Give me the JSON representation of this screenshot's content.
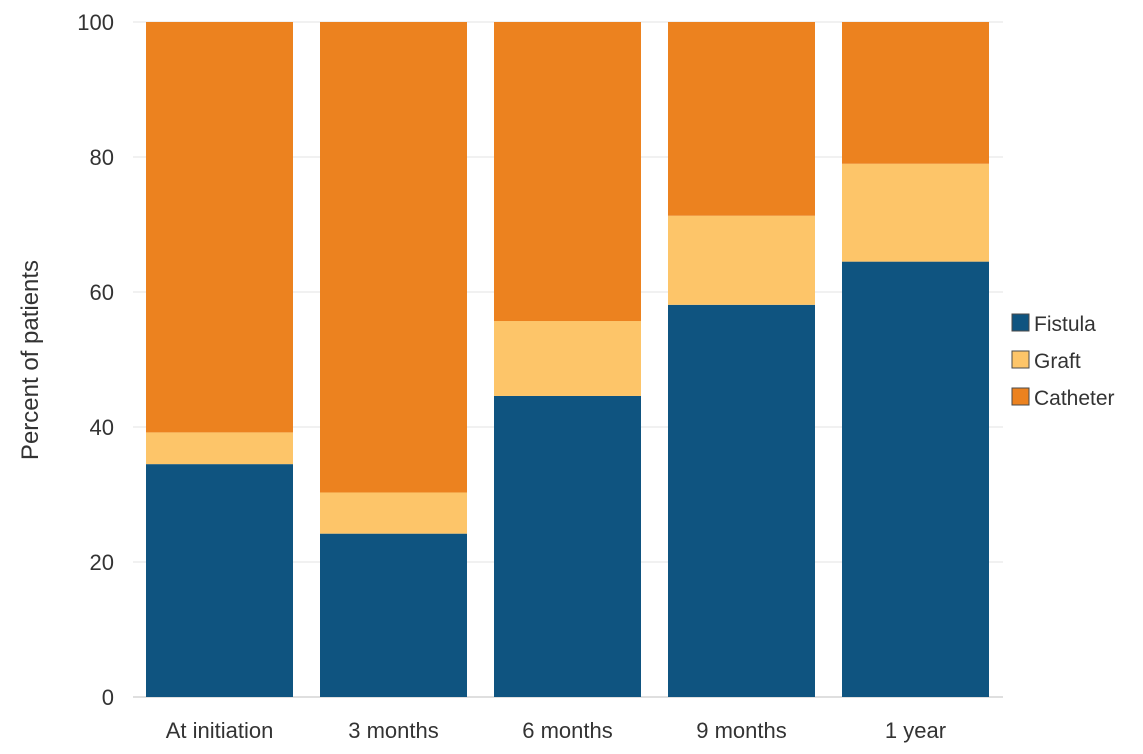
{
  "chart_data": {
    "type": "bar",
    "stacked": true,
    "title": "",
    "xlabel": "",
    "ylabel": "Percent of patients",
    "ylim": [
      0,
      100
    ],
    "yticks": [
      0,
      20,
      40,
      60,
      80,
      100
    ],
    "grid": true,
    "legend_position": "right",
    "categories": [
      "At initiation",
      "3 months",
      "6 months",
      "9 months",
      "1 year"
    ],
    "series": [
      {
        "name": "Fistula",
        "color": "#0f5480",
        "values": [
          34.5,
          24.2,
          44.6,
          58.1,
          64.5
        ]
      },
      {
        "name": "Graft",
        "color": "#fdc569",
        "values": [
          4.7,
          6.1,
          11.1,
          13.2,
          14.5
        ]
      },
      {
        "name": "Catheter",
        "color": "#ec821f",
        "values": [
          60.8,
          69.7,
          44.3,
          28.7,
          21.0
        ]
      }
    ]
  }
}
